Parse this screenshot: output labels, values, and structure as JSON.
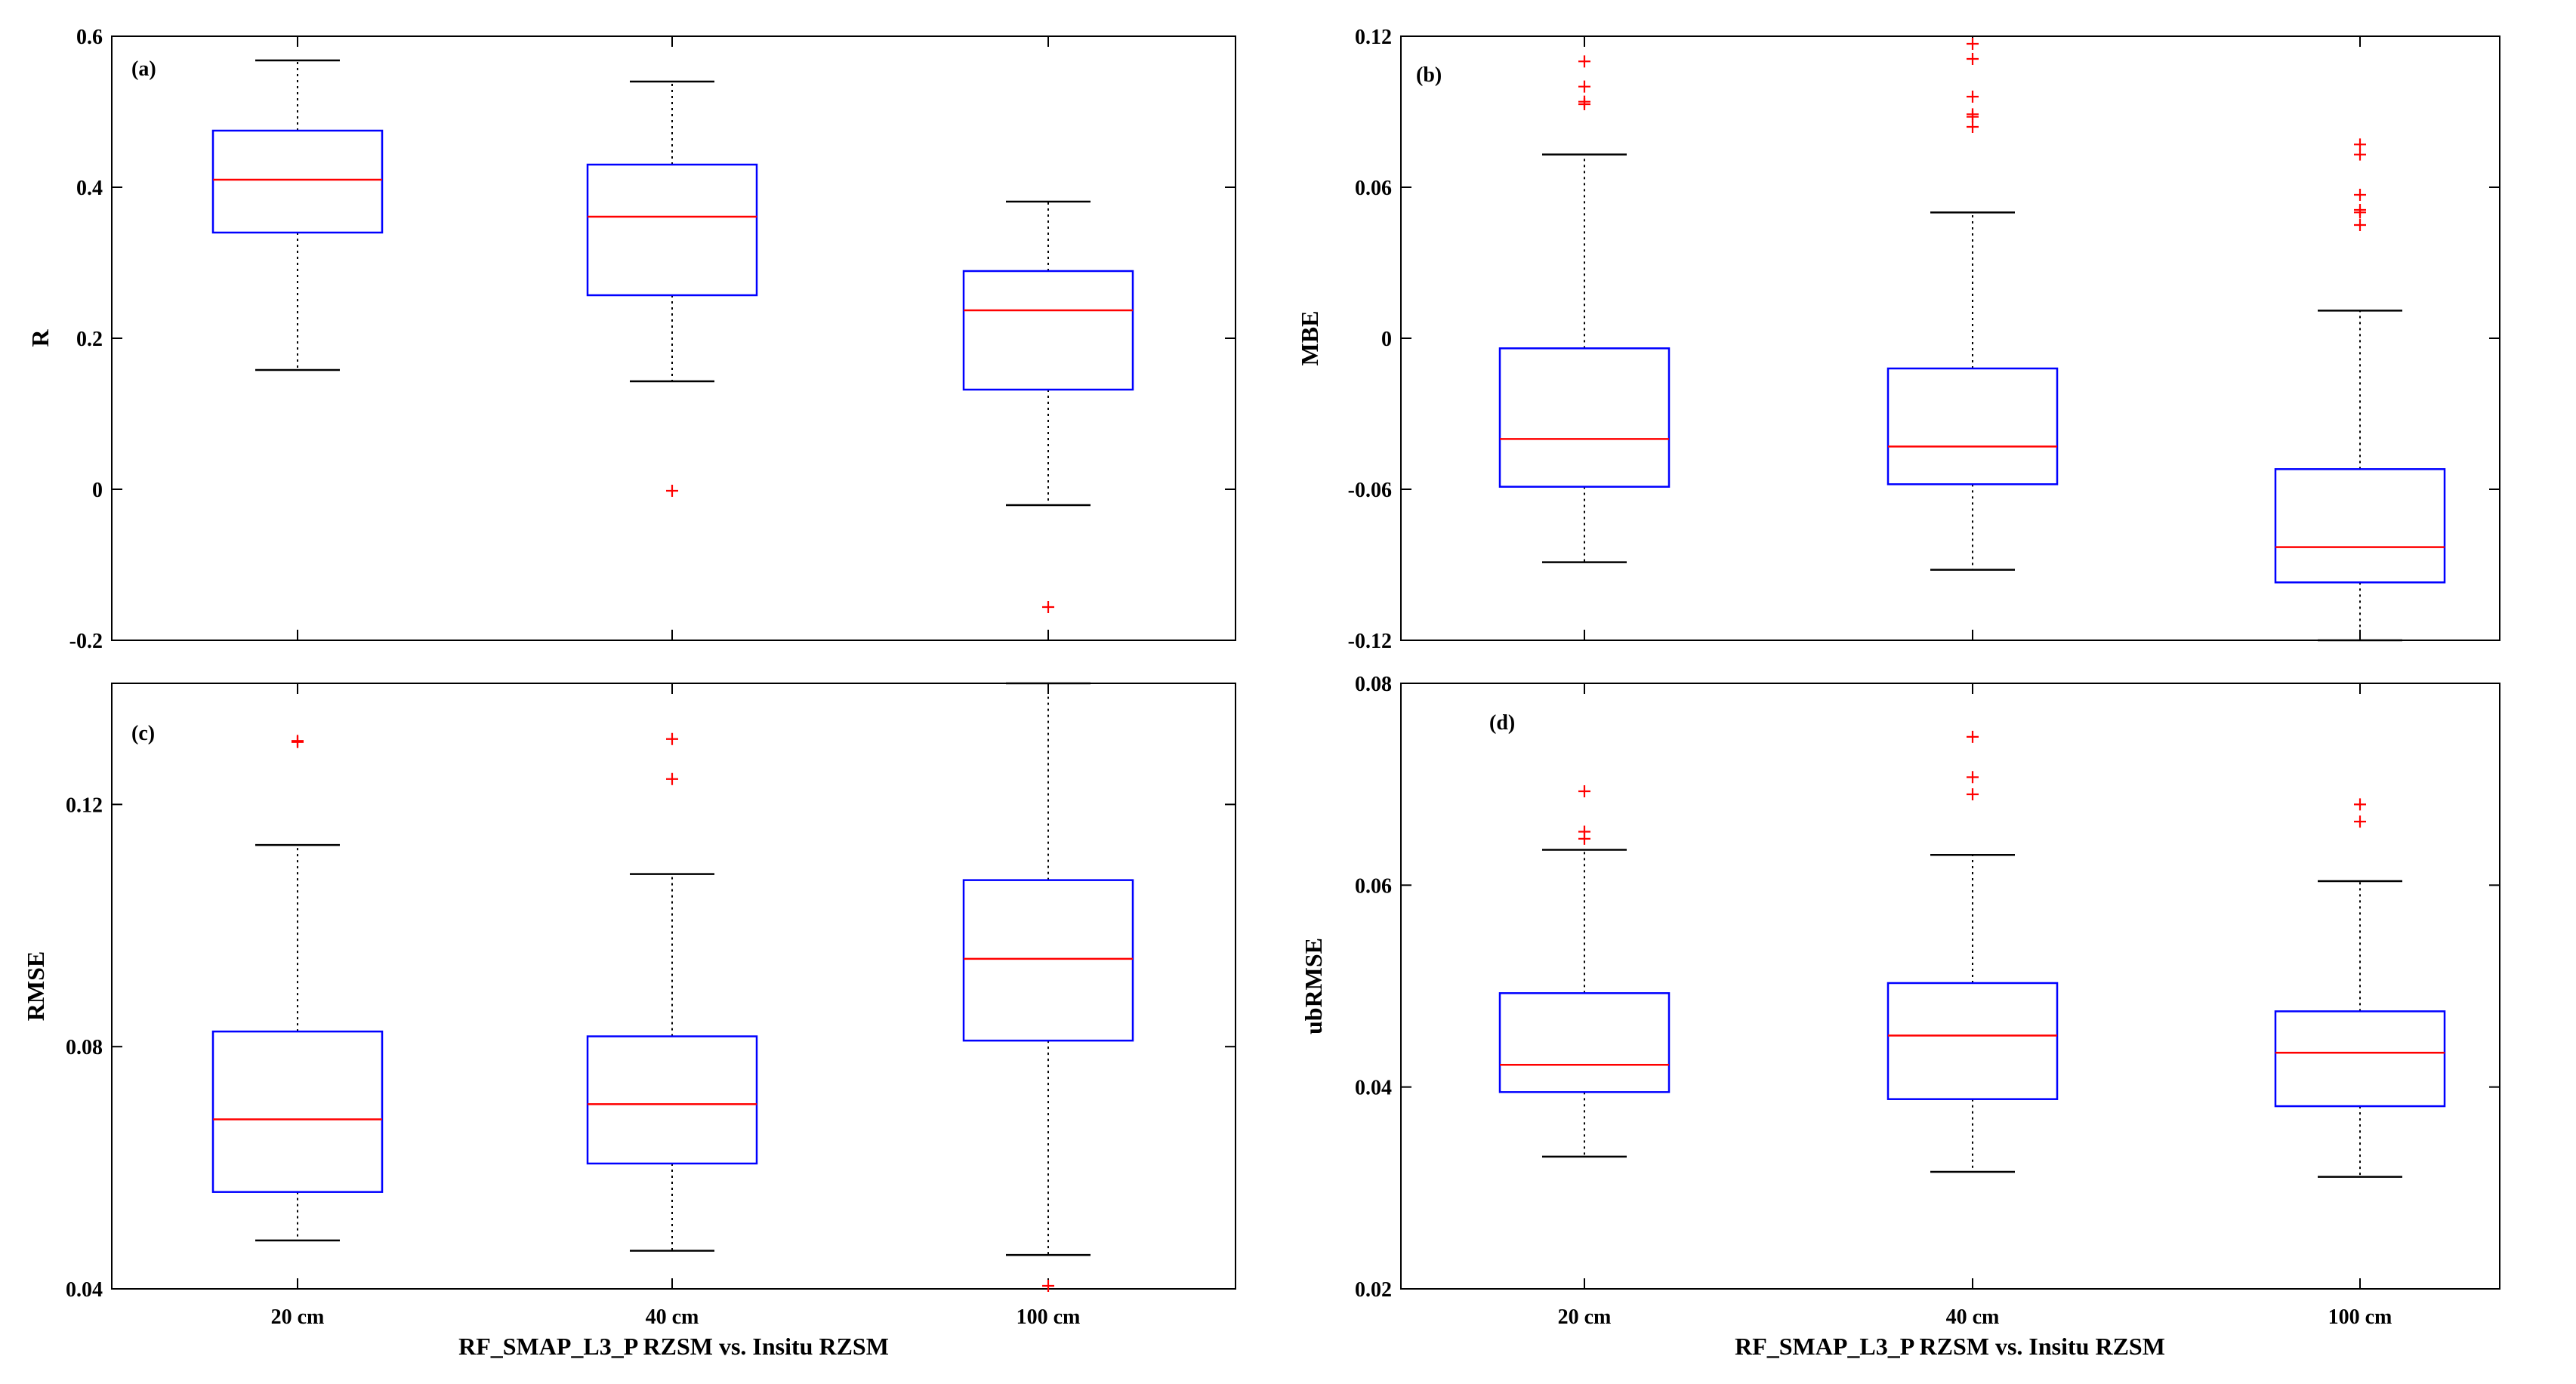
{
  "figure": {
    "xlabel": "RF_SMAP_L3_P RZSM vs. Insitu RZSM",
    "colors": {
      "box": "#0000FF",
      "median": "#FF0000",
      "whisker": "#000000",
      "outlier": "#FF0000",
      "frame": "#000000"
    }
  },
  "chart_data": [
    {
      "type": "box",
      "panel": "(a)",
      "ylabel": "R",
      "categories": [
        "20 cm",
        "40 cm",
        "100 cm"
      ],
      "ylim": [
        -0.2,
        0.6
      ],
      "yticks": [
        -0.2,
        0,
        0.2,
        0.4,
        0.6
      ],
      "ytick_labels": [
        "-0.2",
        "0",
        "0.2",
        "0.4",
        "0.6"
      ],
      "boxes": [
        {
          "category": "20 cm",
          "whisker_low": 0.158,
          "q1": 0.34,
          "median": 0.41,
          "q3": 0.475,
          "whisker_high": 0.568,
          "outliers": []
        },
        {
          "category": "40 cm",
          "whisker_low": 0.143,
          "q1": 0.257,
          "median": 0.361,
          "q3": 0.43,
          "whisker_high": 0.54,
          "outliers": [
            -0.002
          ]
        },
        {
          "category": "100 cm",
          "whisker_low": -0.021,
          "q1": 0.132,
          "median": 0.237,
          "q3": 0.289,
          "whisker_high": 0.381,
          "outliers": [
            -0.156
          ]
        }
      ]
    },
    {
      "type": "box",
      "panel": "(b)",
      "ylabel": "MBE",
      "categories": [
        "20 cm",
        "40 cm",
        "100 cm"
      ],
      "ylim": [
        -0.12,
        0.12
      ],
      "yticks": [
        -0.12,
        -0.06,
        0,
        0.06,
        0.12
      ],
      "ytick_labels": [
        "-0.12",
        "-0.06",
        "0",
        "0.06",
        "0.12"
      ],
      "boxes": [
        {
          "category": "20 cm",
          "whisker_low": -0.089,
          "q1": -0.059,
          "median": -0.04,
          "q3": -0.004,
          "whisker_high": 0.073,
          "outliers": [
            0.093,
            0.094,
            0.1,
            0.11
          ]
        },
        {
          "category": "40 cm",
          "whisker_low": -0.092,
          "q1": -0.058,
          "median": -0.043,
          "q3": -0.012,
          "whisker_high": 0.05,
          "outliers": [
            0.084,
            0.088,
            0.089,
            0.096,
            0.111,
            0.117
          ]
        },
        {
          "category": "100 cm",
          "whisker_low": -0.12,
          "q1": -0.097,
          "median": -0.083,
          "q3": -0.052,
          "whisker_high": 0.011,
          "outliers": [
            0.045,
            0.05,
            0.051,
            0.057,
            0.073,
            0.077
          ]
        }
      ]
    },
    {
      "type": "box",
      "panel": "(c)",
      "ylabel": "RMSE",
      "categories": [
        "20 cm",
        "40 cm",
        "100 cm"
      ],
      "ylim": [
        0.04,
        0.14
      ],
      "yticks": [
        0.04,
        0.08,
        0.12
      ],
      "ytick_labels": [
        "0.04",
        "0.08",
        "0.12"
      ],
      "boxes": [
        {
          "category": "20 cm",
          "whisker_low": 0.048,
          "q1": 0.056,
          "median": 0.068,
          "q3": 0.0825,
          "whisker_high": 0.1133,
          "outliers": [
            0.1303,
            0.1305
          ]
        },
        {
          "category": "40 cm",
          "whisker_low": 0.0463,
          "q1": 0.0607,
          "median": 0.0705,
          "q3": 0.0817,
          "whisker_high": 0.1085,
          "outliers": [
            0.1242,
            0.1308
          ]
        },
        {
          "category": "100 cm",
          "whisker_low": 0.0456,
          "q1": 0.081,
          "median": 0.0945,
          "q3": 0.1075,
          "whisker_high": 0.14,
          "outliers": [
            0.0405
          ]
        }
      ]
    },
    {
      "type": "box",
      "panel": "(d)",
      "ylabel": "ubRMSE",
      "categories": [
        "20 cm",
        "40 cm",
        "100 cm"
      ],
      "ylim": [
        0.02,
        0.08
      ],
      "yticks": [
        0.02,
        0.04,
        0.06,
        0.08
      ],
      "ytick_labels": [
        "0.02",
        "0.04",
        "0.06",
        "0.08"
      ],
      "boxes": [
        {
          "category": "20 cm",
          "whisker_low": 0.0331,
          "q1": 0.0395,
          "median": 0.0422,
          "q3": 0.0493,
          "whisker_high": 0.0635,
          "outliers": [
            0.0646,
            0.0653,
            0.0693
          ]
        },
        {
          "category": "40 cm",
          "whisker_low": 0.0316,
          "q1": 0.0388,
          "median": 0.0451,
          "q3": 0.0503,
          "whisker_high": 0.063,
          "outliers": [
            0.069,
            0.0707,
            0.0747
          ]
        },
        {
          "category": "100 cm",
          "whisker_low": 0.0311,
          "q1": 0.0381,
          "median": 0.0434,
          "q3": 0.0475,
          "whisker_high": 0.0604,
          "outliers": [
            0.0663,
            0.068
          ]
        }
      ]
    }
  ]
}
